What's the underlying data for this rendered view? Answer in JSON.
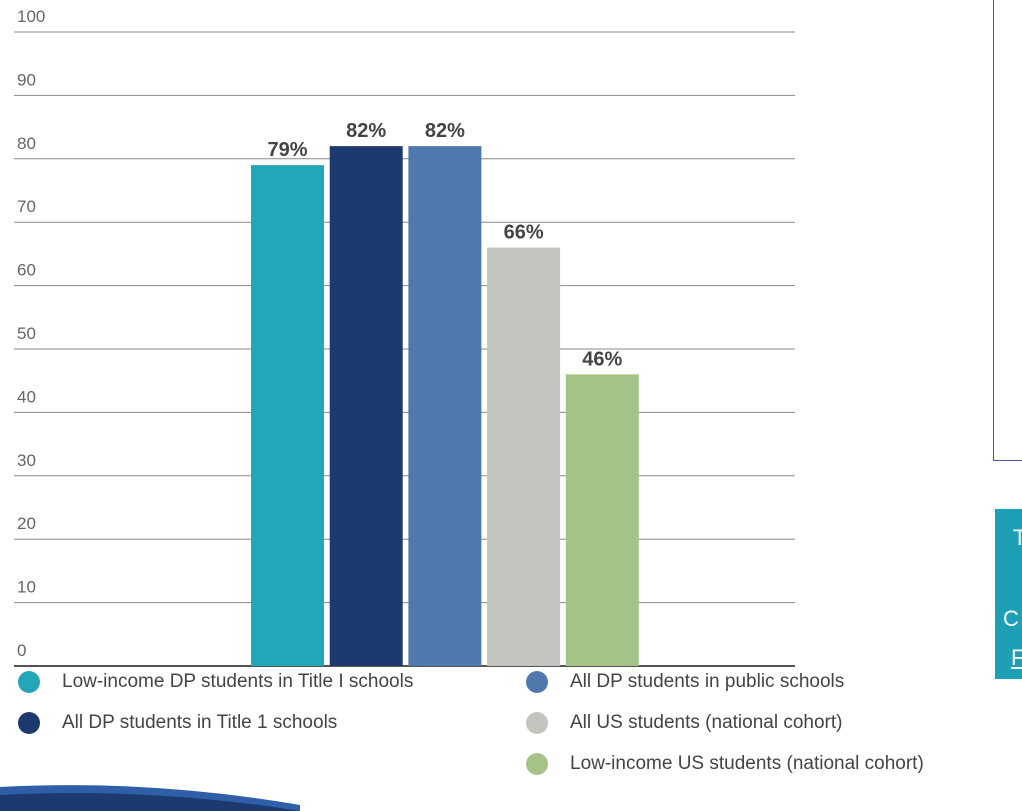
{
  "chart_data": {
    "type": "bar",
    "title": "",
    "xlabel": "",
    "ylabel": "",
    "ylim": [
      0,
      100
    ],
    "yticks": [
      "0",
      "10",
      "20",
      "30",
      "40",
      "50",
      "60",
      "70",
      "80",
      "90",
      "100"
    ],
    "grid": true,
    "legend_position": "bottom",
    "categories": [
      "Low-income DP students in Title I schools",
      "All DP students in Title 1 schools",
      "All DP students in public schools",
      "All US students (national cohort)",
      "Low-income US students (national cohort)"
    ],
    "values": [
      79,
      82,
      82,
      66,
      46
    ],
    "data_labels": [
      "79%",
      "82%",
      "82%",
      "66%",
      "46%"
    ],
    "colors": [
      "#22a6b8",
      "#1d3a6e",
      "#4f79ad",
      "#c4c4be",
      "#a5c386"
    ]
  },
  "legend": {
    "items": [
      "Low-income DP students in Title I schools",
      "All DP students in Title 1 schools",
      "All DP students in public schools",
      "All US students (national cohort)",
      "Low-income US students (national cohort)"
    ]
  },
  "side_banner": {
    "glyph_1": "T",
    "glyph_2": "C",
    "glyph_3": "F"
  },
  "theme": {
    "gridline": "#8a8a8a",
    "axis": "#555555",
    "panel_border": "#3f5aa6",
    "banner": "#1da0b6"
  }
}
